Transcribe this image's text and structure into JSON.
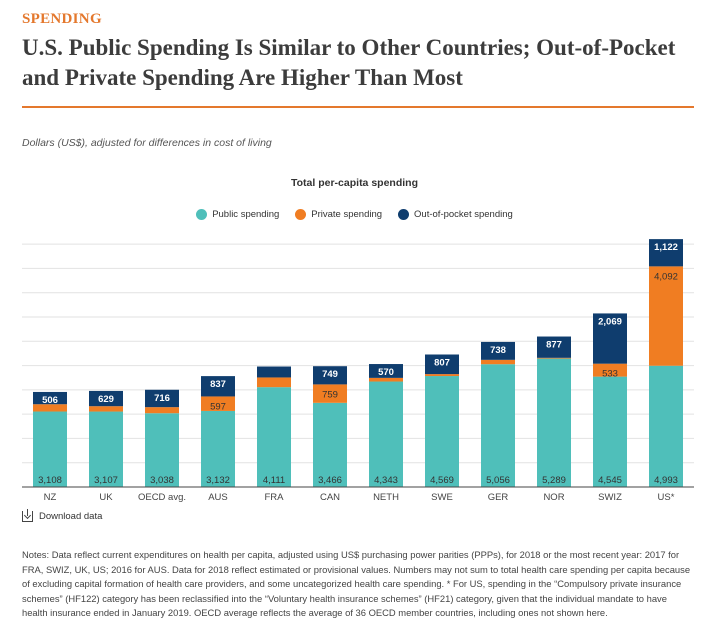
{
  "header": {
    "kicker": "SPENDING",
    "title": "U.S. Public Spending Is Similar to Other Countries; Out-of-Pocket and Private Spending Are Higher Than Most"
  },
  "subtitle": "Dollars (US$), adjusted for differences in cost of living",
  "download_label": "Download data",
  "notes": "Notes: Data reflect current expenditures on health per capita, adjusted using US$ purchasing power parities (PPPs), for 2018 or the most recent year: 2017 for FRA, SWIZ, UK, US; 2016 for AUS. Data for 2018 reflect estimated or provisional values. Numbers may not sum to total health care spending per capita because of excluding capital formation of health care providers, and some uncategorized health care spending. * For US, spending in the “Compulsory private insurance schemes” (HF122) category has been reclassified into the “Voluntary health insurance schemes” (HF21) category, given that the individual mandate to have health insurance ended in January 2019. OECD average reflects the average of 36 OECD member countries, including ones not shown here.",
  "colors": {
    "public": "#4fbfba",
    "private": "#f07d22",
    "oop": "#0f3d6e",
    "grid": "#e2e2e2",
    "axis": "#444444"
  },
  "chart_data": {
    "type": "bar",
    "stacked": true,
    "title": "Total per-capita spending",
    "categories": [
      "NZ",
      "UK",
      "OECD avg.",
      "AUS",
      "FRA",
      "CAN",
      "NETH",
      "SWE",
      "GER",
      "NOR",
      "SWIZ",
      "US*"
    ],
    "series": [
      {
        "key": "public",
        "name": "Public spending",
        "values": [
          3108,
          3107,
          3038,
          3132,
          4111,
          3466,
          4343,
          4569,
          5056,
          5289,
          4545,
          4993
        ],
        "labels": [
          "3,108",
          "3,107",
          "3,038",
          "3,132",
          "4,111",
          "3,466",
          "4,343",
          "4,569",
          "5,056",
          "5,289",
          "4,545",
          "4,993"
        ]
      },
      {
        "key": "private",
        "name": "Private spending",
        "values": [
          300,
          220,
          250,
          597,
          400,
          759,
          150,
          80,
          180,
          30,
          533,
          4092
        ],
        "labels": [
          "",
          "",
          "",
          "597",
          "",
          "759",
          "",
          "",
          "",
          "",
          "533",
          "4,092"
        ]
      },
      {
        "key": "oop",
        "name": "Out-of-pocket spending",
        "values": [
          506,
          629,
          716,
          837,
          450,
          749,
          570,
          807,
          738,
          877,
          2069,
          1122
        ],
        "labels": [
          "506",
          "629",
          "716",
          "837",
          "",
          "749",
          "570",
          "807",
          "738",
          "877",
          "2,069",
          "1,122"
        ]
      }
    ],
    "ylim": [
      0,
      10500
    ],
    "grid": true,
    "legend_position": "top-center"
  }
}
